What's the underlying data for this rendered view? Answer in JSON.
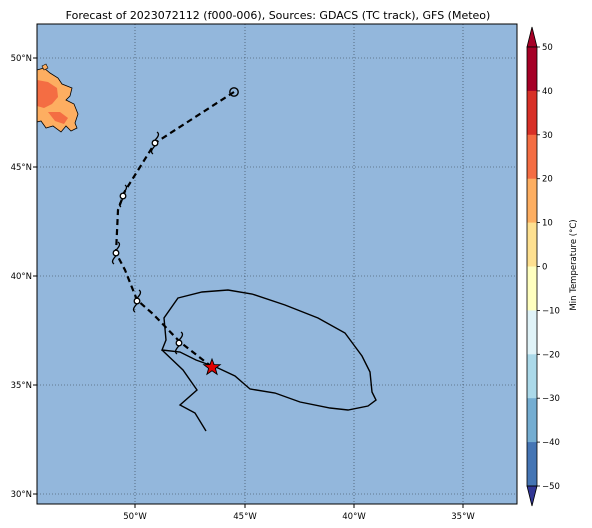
{
  "title": "Forecast of 2023072112 (f000-006), Sources: GDACS (TC track), GFS (Meteo)",
  "map": {
    "x_ticks": [
      "50°W",
      "45°W",
      "40°W",
      "35°W"
    ],
    "y_ticks": [
      "50°N",
      "45°N",
      "40°N",
      "35°N",
      "30°N"
    ],
    "ocean_color": "#93b7dc",
    "grid": "dotted"
  },
  "track": {
    "start_symbol": "open-circle",
    "points_symbol": "tropical-cyclone-icon",
    "current_symbol": "red-star",
    "line_style": "dashed"
  },
  "colorbar": {
    "label": "Min Temperature (°C)",
    "ticks": [
      "50",
      "40",
      "30",
      "20",
      "10",
      "0",
      "−10",
      "−20",
      "−30",
      "−40",
      "−50"
    ],
    "colors": [
      "#a50026",
      "#d73027",
      "#f46d43",
      "#fdae61",
      "#fee090",
      "#ffffbf",
      "#e0f3f8",
      "#abd9e9",
      "#74add1",
      "#4575b4",
      "#313695"
    ],
    "extend": "both"
  }
}
